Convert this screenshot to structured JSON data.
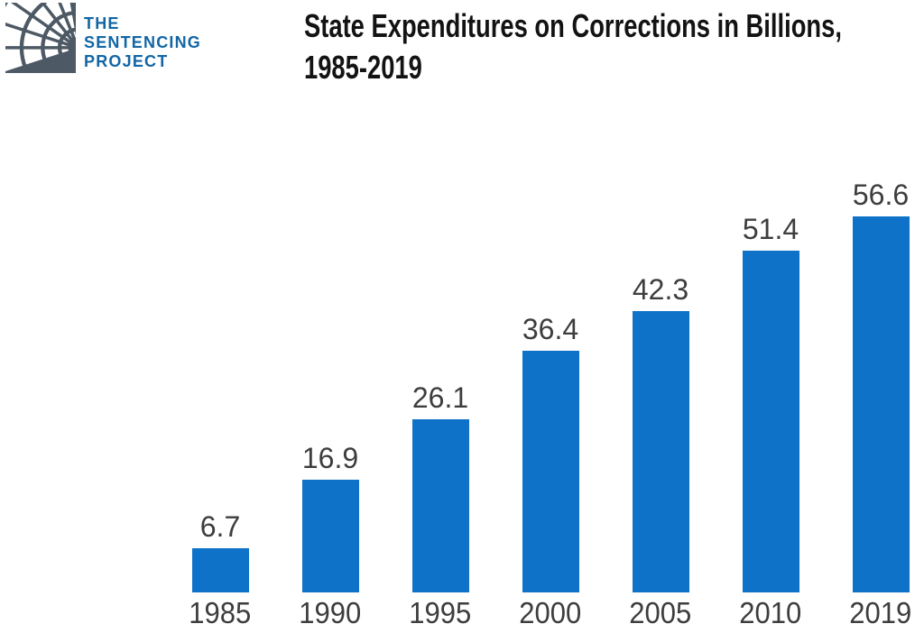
{
  "logo": {
    "org_lines": [
      "THE",
      "SENTENCING",
      "PROJECT"
    ]
  },
  "title": {
    "line1": "State Expenditures on Corrections in Billions,",
    "line2": "1985-2019"
  },
  "chart_data": {
    "type": "bar",
    "categories": [
      "1985",
      "1990",
      "1995",
      "2000",
      "2005",
      "2010",
      "2019"
    ],
    "values": [
      6.7,
      16.9,
      26.1,
      36.4,
      42.3,
      51.4,
      56.6
    ],
    "data_labels": [
      "6.7",
      "16.9",
      "26.1",
      "36.4",
      "42.3",
      "51.4",
      "56.6"
    ],
    "title": "State Expenditures on Corrections in Billions, 1985-2019",
    "xlabel": "",
    "ylabel": "",
    "ylim": [
      0,
      60
    ],
    "grid": false,
    "legend": null,
    "axis_lines": false,
    "data_label_position": "above-bar"
  },
  "colors": {
    "bar": "#0d72c8",
    "logo_square": "#4d5965",
    "logo_text": "#1266a5",
    "title_text": "#131313",
    "label_text": "#3d3d3d",
    "background": "#ffffff"
  }
}
